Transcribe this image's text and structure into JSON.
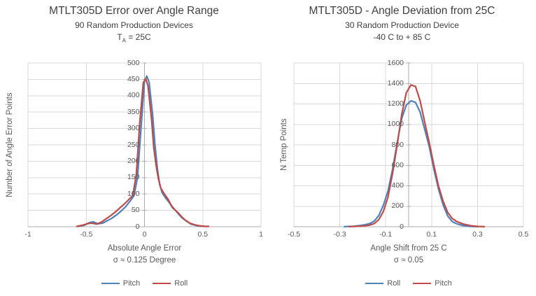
{
  "style": {
    "grid_color": "#D9D9D9",
    "axis_color": "#ABABAB",
    "title_color": "#404040",
    "label_color": "#595959",
    "series_blue": "#4F81BD",
    "series_red": "#BE4B48"
  },
  "chart_data": [
    {
      "type": "line",
      "title": "MTLT305D Error over Angle Range",
      "subtitle": "90 Random Production Devices",
      "condition_main": "T",
      "condition_sub": "A",
      "condition_tail": " = 25C",
      "y_label": "Number of Angle Error Points",
      "x_label": "Absolute Angle Error",
      "x_sub": "σ ≈ 0.125 Degree",
      "xlim": [
        -1,
        1
      ],
      "ylim": [
        0,
        500
      ],
      "x_ticks": [
        -1,
        -0.5,
        0,
        0.5,
        1
      ],
      "y_ticks": [
        0,
        50,
        100,
        150,
        200,
        250,
        300,
        350,
        400,
        450,
        500
      ],
      "y_axis_at": 0,
      "grid": true,
      "legend_position": "bottom",
      "series": [
        {
          "name": "Pitch",
          "color": "#4F81BD",
          "x": [
            -0.57,
            -0.52,
            -0.47,
            -0.44,
            -0.4,
            -0.36,
            -0.32,
            -0.28,
            -0.24,
            -0.2,
            -0.16,
            -0.12,
            -0.09,
            -0.06,
            -0.03,
            0.0,
            0.02,
            0.04,
            0.07,
            0.09,
            0.11,
            0.13,
            0.15,
            0.18,
            0.21,
            0.24,
            0.27,
            0.3,
            0.33,
            0.36,
            0.4,
            0.44,
            0.48,
            0.52
          ],
          "y": [
            1,
            4,
            13,
            15,
            9,
            11,
            18,
            26,
            36,
            48,
            62,
            80,
            95,
            150,
            300,
            445,
            460,
            440,
            340,
            250,
            180,
            130,
            105,
            88,
            75,
            58,
            48,
            35,
            25,
            17,
            8,
            4,
            2,
            1
          ]
        },
        {
          "name": "Roll",
          "color": "#BE4B48",
          "x": [
            -0.58,
            -0.53,
            -0.48,
            -0.45,
            -0.41,
            -0.37,
            -0.33,
            -0.29,
            -0.25,
            -0.21,
            -0.17,
            -0.13,
            -0.1,
            -0.07,
            -0.04,
            -0.01,
            0.01,
            0.03,
            0.06,
            0.08,
            0.1,
            0.12,
            0.14,
            0.17,
            0.2,
            0.23,
            0.26,
            0.29,
            0.32,
            0.35,
            0.39,
            0.43,
            0.47,
            0.52,
            0.55
          ],
          "y": [
            1,
            5,
            10,
            11,
            8,
            14,
            24,
            34,
            45,
            58,
            70,
            85,
            95,
            160,
            320,
            440,
            452,
            430,
            330,
            240,
            185,
            145,
            118,
            100,
            85,
            65,
            52,
            42,
            30,
            20,
            11,
            6,
            3,
            1,
            1
          ]
        }
      ]
    },
    {
      "type": "line",
      "title": "MTLT305D - Angle Deviation from 25C",
      "subtitle": "30 Random Production Device",
      "condition": "-40 C to + 85 C",
      "y_label": "N Temp Points",
      "x_label": "Angle Shift from 25 C",
      "x_sub": "σ ≈ 0.05",
      "xlim": [
        -0.5,
        0.5
      ],
      "ylim": [
        0,
        1600
      ],
      "x_ticks": [
        -0.5,
        -0.3,
        -0.1,
        0.1,
        0.3,
        0.5
      ],
      "y_ticks": [
        0,
        200,
        400,
        600,
        800,
        1000,
        1200,
        1400,
        1600
      ],
      "y_axis_at": 0,
      "grid": true,
      "legend_position": "bottom",
      "series": [
        {
          "name": "Roll",
          "color": "#4F81BD",
          "x": [
            -0.28,
            -0.24,
            -0.21,
            -0.19,
            -0.17,
            -0.15,
            -0.13,
            -0.11,
            -0.09,
            -0.07,
            -0.05,
            -0.03,
            -0.01,
            0.01,
            0.03,
            0.05,
            0.07,
            0.09,
            0.11,
            0.13,
            0.15,
            0.17,
            0.19,
            0.21,
            0.24,
            0.27,
            0.3
          ],
          "y": [
            1,
            5,
            12,
            20,
            30,
            55,
            110,
            210,
            350,
            560,
            820,
            1060,
            1190,
            1230,
            1215,
            1120,
            950,
            780,
            560,
            370,
            215,
            105,
            50,
            28,
            10,
            3,
            1
          ]
        },
        {
          "name": "Pitch",
          "color": "#BE4B48",
          "x": [
            -0.26,
            -0.22,
            -0.19,
            -0.17,
            -0.15,
            -0.13,
            -0.11,
            -0.09,
            -0.07,
            -0.05,
            -0.03,
            -0.01,
            0.01,
            0.03,
            0.05,
            0.07,
            0.09,
            0.11,
            0.13,
            0.15,
            0.17,
            0.19,
            0.21,
            0.24,
            0.27,
            0.3,
            0.33
          ],
          "y": [
            1,
            4,
            9,
            16,
            30,
            70,
            150,
            290,
            520,
            800,
            1100,
            1310,
            1385,
            1370,
            1230,
            1020,
            820,
            600,
            400,
            250,
            140,
            80,
            50,
            25,
            10,
            3,
            1
          ]
        }
      ]
    }
  ]
}
